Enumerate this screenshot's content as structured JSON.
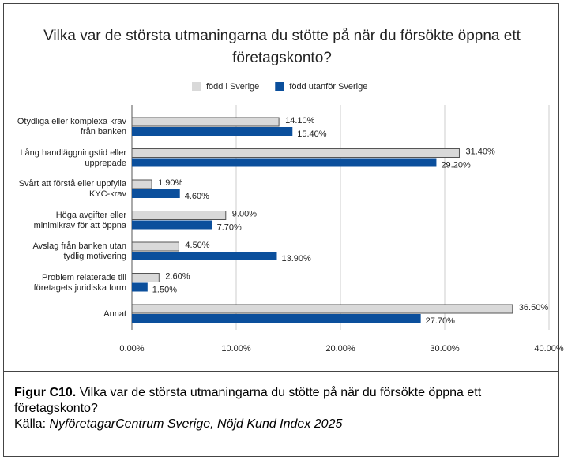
{
  "chart_data": {
    "type": "barh",
    "title": "Vilka var de största utmaningarna du stötte på när du försökte öppna ett företagskonto?",
    "categories": [
      "Otydliga eller komplexa krav från banken",
      "Lång handläggningstid eller upprepade",
      "Svårt att förstå eller uppfylla KYC-krav",
      "Höga avgifter eller minimikrav för att öppna",
      "Avslag från banken utan tydlig motivering",
      "Problem relaterade till företagets juridiska form",
      "Annat"
    ],
    "series": [
      {
        "name": "född i Sverige",
        "color": "#d9d9d9",
        "label_color": "#000000",
        "values": [
          14.1,
          31.4,
          1.9,
          9.0,
          4.5,
          2.6,
          36.5
        ],
        "value_labels": [
          "14.10%",
          "31.40%",
          "1.90%",
          "9.00%",
          "4.50%",
          "2.60%",
          "36.50%"
        ]
      },
      {
        "name": "född utanför Sverige",
        "color": "#0b4f9c",
        "label_color": "#3a78c0",
        "values": [
          15.4,
          29.2,
          4.6,
          7.7,
          13.9,
          1.5,
          27.7
        ],
        "value_labels": [
          "15.40%",
          "29.20%",
          "4.60%",
          "7.70%",
          "13.90%",
          "1.50%",
          "27.70%"
        ]
      }
    ],
    "xlim": [
      0,
      40
    ],
    "xticks": [
      {
        "value": 0,
        "label": "0.00%"
      },
      {
        "value": 10,
        "label": "10.00%"
      },
      {
        "value": 20,
        "label": "20.00%"
      },
      {
        "value": 30,
        "label": "30.00%"
      },
      {
        "value": 40,
        "label": "40.00%"
      }
    ],
    "grid": true,
    "legend": "top"
  },
  "caption": {
    "label": "Figur C10.",
    "text": "Vilka var de största utmaningarna du stötte på när du försökte öppna ett företagskonto?",
    "source_label": "Källa:",
    "source": "NyföretagarCentrum Sverige, Nöjd Kund Index 2025"
  }
}
